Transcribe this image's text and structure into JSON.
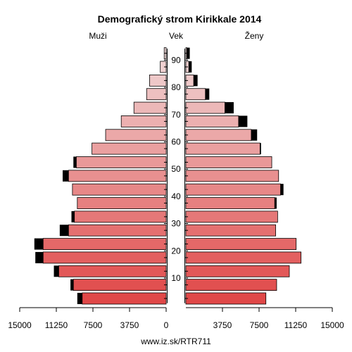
{
  "chart_data": {
    "type": "bar",
    "title": "Demografický strom Kirikkale 2014",
    "left_label": "Muži",
    "center_label": "Vek",
    "right_label": "Ženy",
    "footer": "www.iz.sk/RTR711",
    "xlim": [
      0,
      15000
    ],
    "x_ticks": [
      15000,
      11250,
      7500,
      3750,
      0,
      3750,
      7500,
      11250,
      15000
    ],
    "age_tick_labels": [
      "10",
      "20",
      "30",
      "40",
      "50",
      "60",
      "70",
      "80",
      "90"
    ],
    "age_groups": [
      "0-4",
      "5-9",
      "10-14",
      "15-19",
      "20-24",
      "25-29",
      "30-34",
      "35-39",
      "40-44",
      "45-49",
      "50-54",
      "55-59",
      "60-64",
      "65-69",
      "70-74",
      "75-79",
      "80-84",
      "85-89",
      "90+"
    ],
    "series": [
      {
        "name": "Muži",
        "values": [
          8600,
          9500,
          11000,
          12600,
          12600,
          10000,
          9400,
          9100,
          9600,
          10000,
          9200,
          7600,
          6200,
          4600,
          3300,
          2000,
          1700,
          600,
          200
        ],
        "excess": [
          500,
          300,
          500,
          800,
          900,
          900,
          300,
          0,
          0,
          600,
          300,
          0,
          0,
          0,
          0,
          0,
          0,
          0,
          0
        ]
      },
      {
        "name": "Ženy",
        "values": [
          8200,
          9300,
          10600,
          11800,
          11300,
          9200,
          9400,
          9100,
          9700,
          9500,
          8800,
          7600,
          6700,
          5400,
          4000,
          2000,
          800,
          300,
          100
        ],
        "excess": [
          0,
          0,
          0,
          0,
          0,
          0,
          0,
          200,
          300,
          0,
          0,
          100,
          600,
          900,
          900,
          400,
          400,
          300,
          300
        ]
      }
    ],
    "colors": {
      "young": "#e04848",
      "old": "#f0d8d8",
      "excess": "#000000",
      "axis": "#000000"
    }
  }
}
